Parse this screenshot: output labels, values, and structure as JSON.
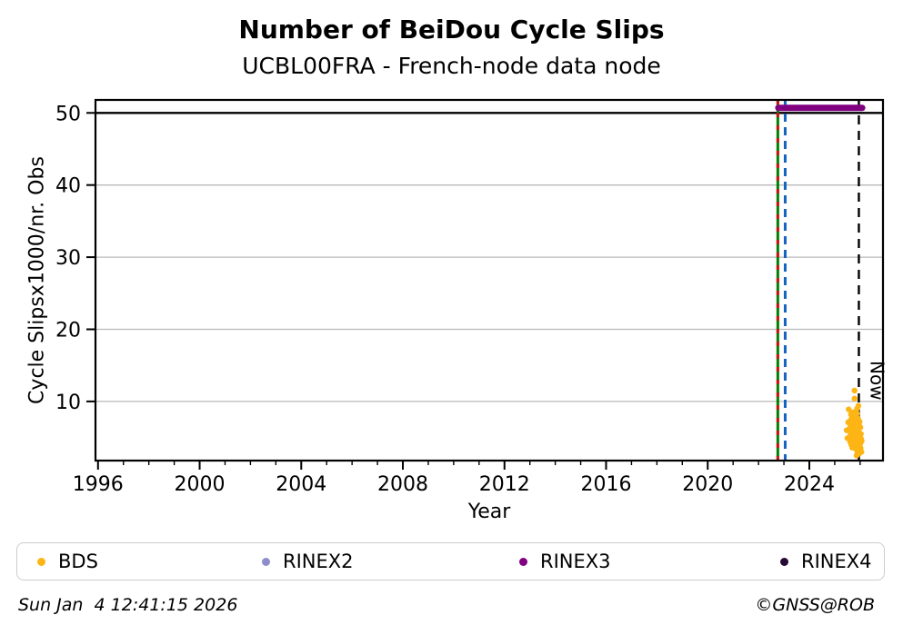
{
  "header": {
    "title": "Number of BeiDou Cycle Slips",
    "subtitle": "UCBL00FRA - French-node data node"
  },
  "footer": {
    "timestamp": "Sun Jan  4 12:41:15 2026",
    "credit": "©GNSS@ROB"
  },
  "chart_data": {
    "type": "scatter",
    "title": "Number of BeiDou Cycle Slips",
    "subtitle": "UCBL00FRA - French-node data node",
    "xlabel": "Year",
    "ylabel": "Cycle Slipsx1000/nr. Obs",
    "xlim": [
      1995.9,
      2026.9
    ],
    "ylim": [
      1.8,
      51.8
    ],
    "xticks": [
      1996,
      2000,
      2004,
      2008,
      2012,
      2016,
      2020,
      2024
    ],
    "minor_xticks_every": 1,
    "yticks": [
      10,
      20,
      30,
      40,
      50
    ],
    "grid": "horizontal-light-gray",
    "grid_color": "#b8b8b8",
    "threshold_line": {
      "y": 50,
      "color": "#000000"
    },
    "legend_position": "bottom",
    "series": [
      {
        "name": "BDS",
        "color": "#fdb515",
        "style": "scatter",
        "points": [
          [
            2025.78,
            11.5
          ],
          [
            2025.78,
            10.4
          ],
          [
            2025.55,
            8.9
          ],
          [
            2025.93,
            9.4
          ],
          [
            2025.88,
            9.0
          ],
          [
            2025.47,
            6.0
          ],
          [
            2025.5,
            4.9
          ],
          [
            2025.53,
            7.1
          ],
          [
            2025.57,
            6.2
          ],
          [
            2025.59,
            5.1
          ],
          [
            2025.6,
            7.3
          ],
          [
            2025.61,
            4.4
          ],
          [
            2025.62,
            6.8
          ],
          [
            2025.63,
            5.6
          ],
          [
            2025.64,
            8.2
          ],
          [
            2025.65,
            4.0
          ],
          [
            2025.66,
            6.5
          ],
          [
            2025.67,
            7.8
          ],
          [
            2025.68,
            5.3
          ],
          [
            2025.69,
            3.6
          ],
          [
            2025.7,
            6.0
          ],
          [
            2025.71,
            7.1
          ],
          [
            2025.72,
            4.7
          ],
          [
            2025.73,
            8.5
          ],
          [
            2025.74,
            5.9
          ],
          [
            2025.75,
            3.9
          ],
          [
            2025.76,
            6.6
          ],
          [
            2025.77,
            7.4
          ],
          [
            2025.79,
            4.3
          ],
          [
            2025.8,
            5.7
          ],
          [
            2025.81,
            8.0
          ],
          [
            2025.82,
            6.3
          ],
          [
            2025.83,
            3.4
          ],
          [
            2025.84,
            7.0
          ],
          [
            2025.85,
            5.0
          ],
          [
            2025.86,
            2.5
          ],
          [
            2025.86,
            6.9
          ],
          [
            2025.87,
            4.6
          ],
          [
            2025.88,
            8.3
          ],
          [
            2025.89,
            5.4
          ],
          [
            2025.9,
            3.2
          ],
          [
            2025.91,
            6.1
          ],
          [
            2025.92,
            7.6
          ],
          [
            2025.93,
            4.9
          ],
          [
            2025.94,
            5.8
          ],
          [
            2025.95,
            3.7
          ],
          [
            2025.96,
            6.7
          ],
          [
            2025.97,
            4.2
          ],
          [
            2025.98,
            7.2
          ],
          [
            2025.99,
            5.2
          ],
          [
            2026.0,
            4.1
          ],
          [
            2026.01,
            6.4
          ],
          [
            2026.02,
            3.5
          ],
          [
            2026.03,
            5.5
          ],
          [
            2026.04,
            4.8
          ],
          [
            2026.05,
            3.0
          ],
          [
            2026.06,
            4.5
          ],
          [
            2025.9,
            2.9
          ],
          [
            2025.94,
            3.1
          ],
          [
            2025.97,
            2.8
          ]
        ]
      },
      {
        "name": "RINEX2",
        "color": "#8d8dcc",
        "style": "scatter",
        "points": []
      },
      {
        "name": "RINEX3",
        "color": "#800080",
        "style": "thick-line",
        "points": [
          [
            2022.78,
            50.7
          ],
          [
            2026.08,
            50.7
          ]
        ]
      },
      {
        "name": "RINEX4",
        "color": "#270a33",
        "style": "scatter",
        "points": []
      }
    ],
    "vlines": [
      {
        "name": "event-line-green-red",
        "x": 2022.76,
        "style": "solid-with-red-dashes",
        "colors": [
          "#008000",
          "#cc1111"
        ]
      },
      {
        "name": "event-line-blue",
        "x": 2023.05,
        "style": "dashed",
        "colors": [
          "#1565c0"
        ]
      },
      {
        "name": "now-line",
        "x": 2025.95,
        "style": "dashed",
        "colors": [
          "#000000"
        ],
        "label": "Now"
      }
    ]
  }
}
